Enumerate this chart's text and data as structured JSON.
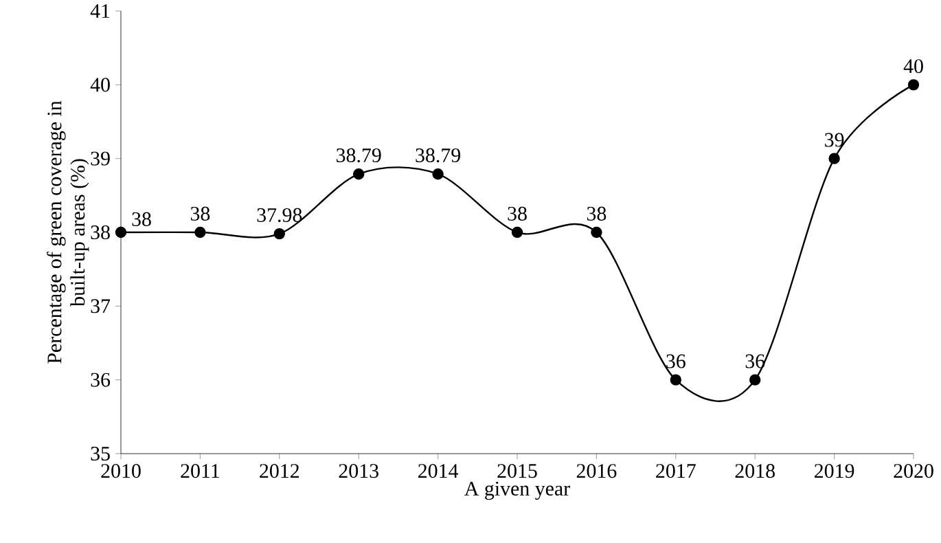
{
  "chart_data": {
    "type": "line",
    "xlabel": "A given year",
    "ylabel": "Percentage of green coverage in built-up areas (%)",
    "x": [
      2010,
      2011,
      2012,
      2013,
      2014,
      2015,
      2016,
      2017,
      2018,
      2019,
      2020
    ],
    "values": [
      38,
      38,
      37.98,
      38.79,
      38.79,
      38,
      38,
      36,
      36,
      39,
      40
    ],
    "color": "#000000",
    "marker": "circle",
    "line_style": "solid",
    "data_labels": true,
    "grid": false,
    "xlim": [
      2010,
      2020
    ],
    "xticks": [
      2010,
      2011,
      2012,
      2013,
      2014,
      2015,
      2016,
      2017,
      2018,
      2019,
      2020
    ],
    "ylim": [
      35,
      41
    ],
    "yticks": [
      35,
      36,
      37,
      38,
      39,
      40,
      41
    ]
  }
}
